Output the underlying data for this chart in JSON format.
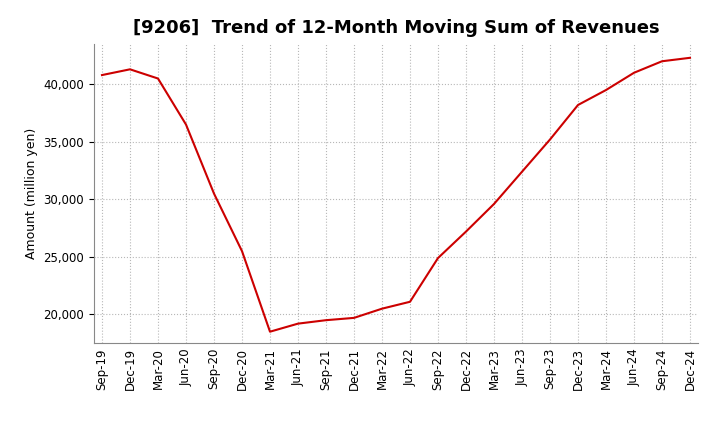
{
  "title": "[9206]  Trend of 12-Month Moving Sum of Revenues",
  "ylabel": "Amount (million yen)",
  "line_color": "#cc0000",
  "background_color": "#ffffff",
  "grid_color": "#b0b0b0",
  "x_labels": [
    "Sep-19",
    "Dec-19",
    "Mar-20",
    "Jun-20",
    "Sep-20",
    "Dec-20",
    "Mar-21",
    "Jun-21",
    "Sep-21",
    "Dec-21",
    "Mar-22",
    "Jun-22",
    "Sep-22",
    "Dec-22",
    "Mar-23",
    "Jun-23",
    "Sep-23",
    "Dec-23",
    "Mar-24",
    "Jun-24",
    "Sep-24",
    "Dec-24"
  ],
  "y_values": [
    40800,
    41300,
    40500,
    36500,
    30500,
    25500,
    18500,
    19200,
    19500,
    19700,
    20500,
    21100,
    24900,
    27200,
    29600,
    32400,
    35200,
    38200,
    39500,
    41000,
    42000,
    42300
  ],
  "ylim": [
    17500,
    43500
  ],
  "yticks": [
    20000,
    25000,
    30000,
    35000,
    40000
  ],
  "title_fontsize": 13,
  "label_fontsize": 9,
  "tick_fontsize": 8.5
}
